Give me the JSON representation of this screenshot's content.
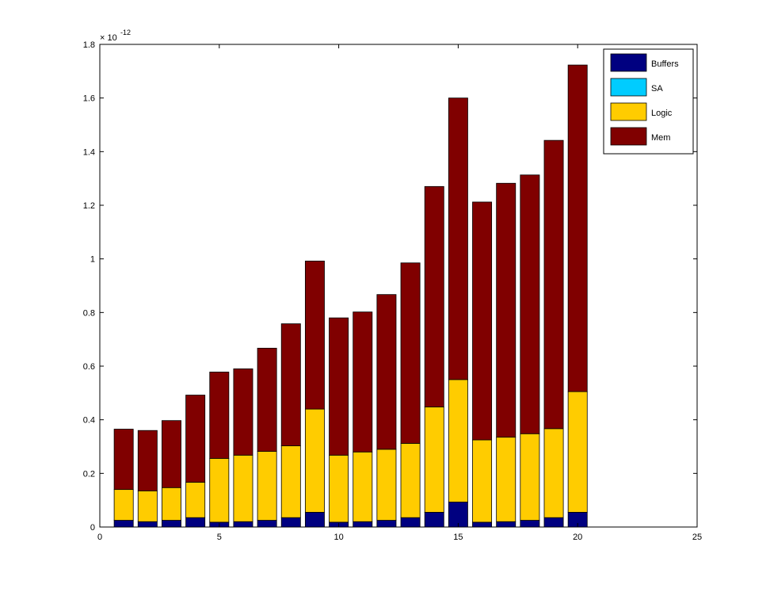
{
  "chart_data": {
    "type": "bar",
    "stacked": true,
    "exponent_label": "× 10",
    "exponent_power": "-12",
    "xlim": [
      0,
      25
    ],
    "ylim": [
      0,
      1.8
    ],
    "xticks": [
      "0",
      "5",
      "10",
      "15",
      "20",
      "25"
    ],
    "yticks": [
      "0",
      "0.2",
      "0.4",
      "0.6",
      "0.8",
      "1",
      "1.2",
      "1.4",
      "1.6",
      "1.8"
    ],
    "grid": false,
    "legend_position": "top-right",
    "x": [
      1,
      2,
      3,
      4,
      5,
      6,
      7,
      8,
      9,
      10,
      11,
      12,
      13,
      14,
      15,
      16,
      17,
      18,
      19,
      20
    ],
    "series": [
      {
        "name": "Buffers",
        "color": "#000080",
        "values": [
          0.025,
          0.02,
          0.025,
          0.035,
          0.018,
          0.02,
          0.025,
          0.035,
          0.055,
          0.018,
          0.02,
          0.025,
          0.035,
          0.055,
          0.093,
          0.018,
          0.02,
          0.025,
          0.035,
          0.055
        ]
      },
      {
        "name": "SA",
        "color": "#00ccff",
        "values": [
          0,
          0,
          0,
          0,
          0,
          0,
          0,
          0,
          0,
          0,
          0,
          0,
          0,
          0,
          0,
          0,
          0,
          0,
          0,
          0
        ]
      },
      {
        "name": "Logic",
        "color": "#ffcc00",
        "values": [
          0.115,
          0.115,
          0.122,
          0.132,
          0.238,
          0.248,
          0.257,
          0.268,
          0.385,
          0.25,
          0.26,
          0.265,
          0.277,
          0.393,
          0.457,
          0.307,
          0.315,
          0.323,
          0.332,
          0.45
        ]
      },
      {
        "name": "Mem",
        "color": "#800000",
        "values": [
          0.225,
          0.225,
          0.25,
          0.325,
          0.322,
          0.322,
          0.385,
          0.455,
          0.552,
          0.512,
          0.522,
          0.577,
          0.673,
          0.822,
          1.05,
          0.887,
          0.947,
          0.965,
          1.075,
          1.218
        ]
      }
    ]
  }
}
